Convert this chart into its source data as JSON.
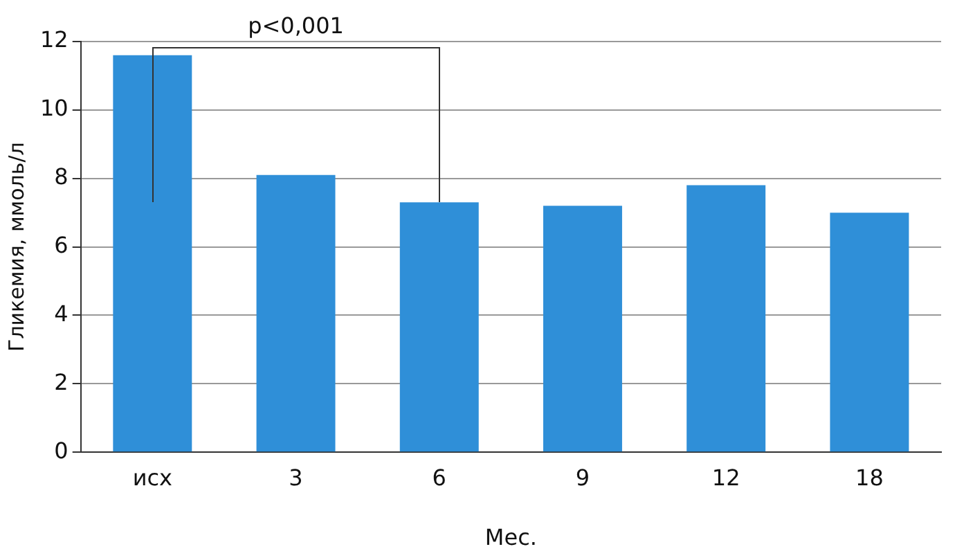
{
  "chart_data": {
    "type": "bar",
    "xlabel": "Мес.",
    "ylabel": "Гликемия, ммоль/л",
    "categories": [
      "исх",
      "3",
      "6",
      "9",
      "12",
      "18"
    ],
    "values": [
      11.6,
      8.1,
      7.3,
      7.2,
      7.8,
      7.0
    ],
    "color": "#2f8fd8",
    "ylim": [
      0,
      12
    ],
    "yticks": [
      0,
      2,
      4,
      6,
      8,
      10,
      12
    ],
    "grid": "y",
    "annotations": [
      "p<0,001"
    ]
  }
}
